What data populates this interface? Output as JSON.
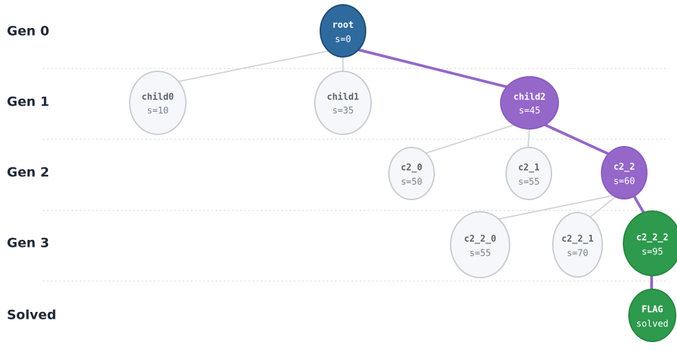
{
  "rows": [
    "Gen 0",
    "Gen 1",
    "Gen 2",
    "Gen 3",
    "Solved"
  ],
  "nodes": [
    {
      "label": "root",
      "score": "s=0"
    },
    {
      "label": "child0",
      "score": "s=10"
    },
    {
      "label": "child1",
      "score": "s=35"
    },
    {
      "label": "child2",
      "score": "s=45"
    },
    {
      "label": "c2_0",
      "score": "s=50"
    },
    {
      "label": "c2_1",
      "score": "s=55"
    },
    {
      "label": "c2_2",
      "score": "s=60"
    },
    {
      "label": "c2_2_0",
      "score": "s=55"
    },
    {
      "label": "c2_2_1",
      "score": "s=70"
    },
    {
      "label": "c2_2_2",
      "score": "s=95"
    },
    {
      "label": "FLAG",
      "score": "solved"
    }
  ]
}
